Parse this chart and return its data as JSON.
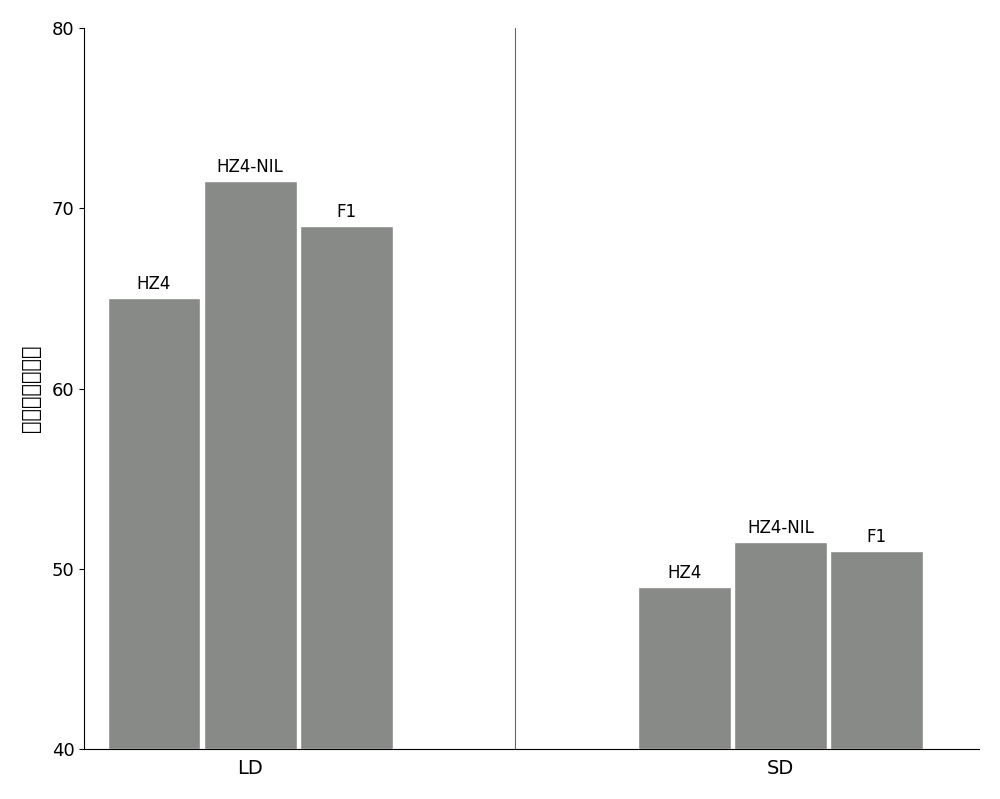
{
  "groups": [
    "LD",
    "SD"
  ],
  "bar_labels": [
    "HZ4",
    "HZ4-NIL",
    "F1"
  ],
  "values": {
    "LD": [
      65.0,
      71.5,
      69.0
    ],
    "SD": [
      49.0,
      51.5,
      51.0
    ]
  },
  "bar_color": "#888a87",
  "bar_edge_color": "white",
  "ylabel": "出苗到散粉天数",
  "ylim": [
    40,
    80
  ],
  "yticks": [
    40,
    50,
    60,
    70,
    80
  ],
  "background_color": "#ffffff",
  "figure_background": "#ffffff",
  "bar_width": 0.28,
  "label_fontsize": 14,
  "ylabel_fontsize": 15,
  "tick_fontsize": 13,
  "annotation_fontsize": 12,
  "group_centers": [
    1.0,
    2.6
  ],
  "xlim": [
    0.5,
    3.2
  ]
}
